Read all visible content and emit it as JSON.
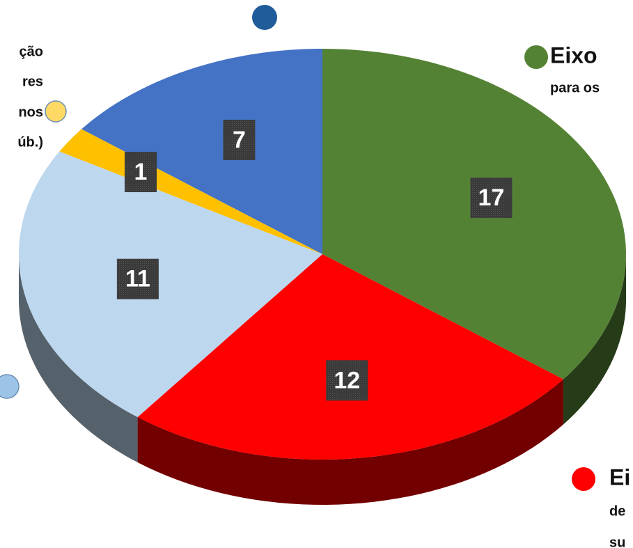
{
  "chart_data": {
    "type": "pie",
    "values": [
      17,
      12,
      11,
      1,
      7
    ],
    "colors": [
      "#548235",
      "#ff0000",
      "#bdd7ee",
      "#ffc000",
      "#4472c4"
    ],
    "categories": [
      [
        "Eixo",
        "para os"
      ],
      [
        "Ei",
        "de",
        "su"
      ],
      null,
      [
        "ção",
        "res",
        "nos",
        "úb.)"
      ],
      null
    ],
    "marker_colors": [
      "#548235",
      "#ff0000",
      "#9dc3e6",
      "#ffd966",
      "#1f5c99"
    ]
  }
}
